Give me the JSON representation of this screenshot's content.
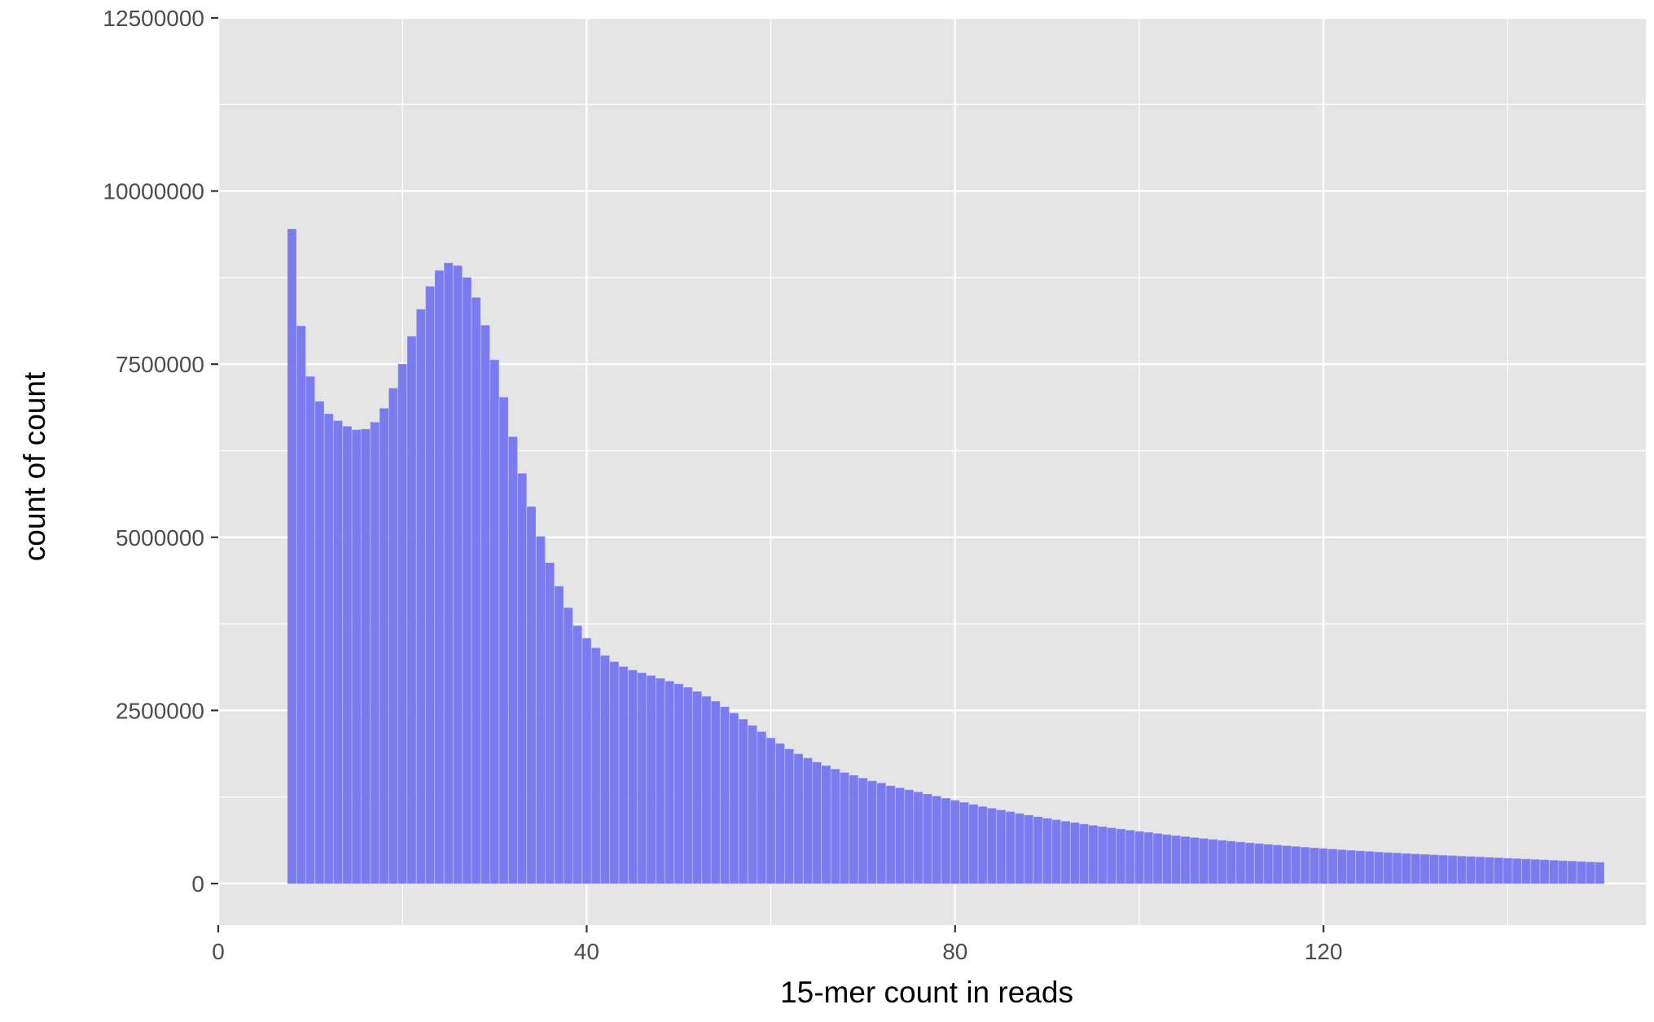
{
  "chart_data": {
    "type": "bar",
    "title": "",
    "xlabel": "15-mer count in reads",
    "ylabel": "count of count",
    "xlim": [
      0,
      155
    ],
    "ylim": [
      -600000,
      12500000
    ],
    "x_ticks": [
      0,
      40,
      80,
      120
    ],
    "x_tick_labels": [
      "0",
      "40",
      "80",
      "120"
    ],
    "y_ticks": [
      0,
      2500000,
      5000000,
      7500000,
      10000000,
      12500000
    ],
    "y_tick_labels": [
      "0",
      "2500000",
      "5000000",
      "7500000",
      "10000000",
      "12500000"
    ],
    "grid": true,
    "legend": "none",
    "colors": {
      "bar_fill": "#7b7bf0",
      "bar_edge": "#9090f4",
      "panel_bg": "#e5e5e5",
      "grid": "#ffffff",
      "axis_text": "#4d4d4d",
      "tick_mark": "#333333"
    },
    "x": [
      8,
      9,
      10,
      11,
      12,
      13,
      14,
      15,
      16,
      17,
      18,
      19,
      20,
      21,
      22,
      23,
      24,
      25,
      26,
      27,
      28,
      29,
      30,
      31,
      32,
      33,
      34,
      35,
      36,
      37,
      38,
      39,
      40,
      41,
      42,
      43,
      44,
      45,
      46,
      47,
      48,
      49,
      50,
      51,
      52,
      53,
      54,
      55,
      56,
      57,
      58,
      59,
      60,
      61,
      62,
      63,
      64,
      65,
      66,
      67,
      68,
      69,
      70,
      71,
      72,
      73,
      74,
      75,
      76,
      77,
      78,
      79,
      80,
      81,
      82,
      83,
      84,
      85,
      86,
      87,
      88,
      89,
      90,
      91,
      92,
      93,
      94,
      95,
      96,
      97,
      98,
      99,
      100,
      101,
      102,
      103,
      104,
      105,
      106,
      107,
      108,
      109,
      110,
      111,
      112,
      113,
      114,
      115,
      116,
      117,
      118,
      119,
      120,
      121,
      122,
      123,
      124,
      125,
      126,
      127,
      128,
      129,
      130,
      131,
      132,
      133,
      134,
      135,
      136,
      137,
      138,
      139,
      140,
      141,
      142,
      143,
      144,
      145,
      146,
      147,
      148,
      149,
      150
    ],
    "values": [
      9450000,
      8050000,
      7320000,
      6960000,
      6780000,
      6680000,
      6600000,
      6550000,
      6560000,
      6660000,
      6860000,
      7150000,
      7500000,
      7900000,
      8290000,
      8620000,
      8850000,
      8960000,
      8920000,
      8750000,
      8460000,
      8060000,
      7560000,
      7020000,
      6450000,
      5920000,
      5440000,
      5010000,
      4630000,
      4290000,
      3980000,
      3720000,
      3540000,
      3400000,
      3290000,
      3200000,
      3130000,
      3080000,
      3040000,
      3000000,
      2960000,
      2920000,
      2880000,
      2830000,
      2770000,
      2700000,
      2630000,
      2550000,
      2460000,
      2370000,
      2280000,
      2190000,
      2100000,
      2020000,
      1940000,
      1870000,
      1810000,
      1750000,
      1700000,
      1650000,
      1600000,
      1560000,
      1520000,
      1480000,
      1450000,
      1410000,
      1380000,
      1350000,
      1320000,
      1290000,
      1260000,
      1230000,
      1200000,
      1170000,
      1140000,
      1110000,
      1085000,
      1060000,
      1035000,
      1010000,
      985000,
      962000,
      940000,
      918000,
      897000,
      877000,
      857000,
      838000,
      820000,
      802000,
      785000,
      768000,
      752000,
      736000,
      720000,
      705000,
      690000,
      676000,
      662000,
      648000,
      635000,
      622000,
      610000,
      598000,
      586000,
      575000,
      564000,
      553000,
      543000,
      533000,
      523000,
      513000,
      504000,
      495000,
      486000,
      477000,
      469000,
      461000,
      453000,
      446000,
      439000,
      432000,
      425000,
      418000,
      412000,
      406000,
      400000,
      394000,
      388000,
      382000,
      376000,
      370000,
      364000,
      358000,
      352000,
      346000,
      340000,
      334000,
      328000,
      322000,
      316000,
      310000,
      305000
    ]
  }
}
